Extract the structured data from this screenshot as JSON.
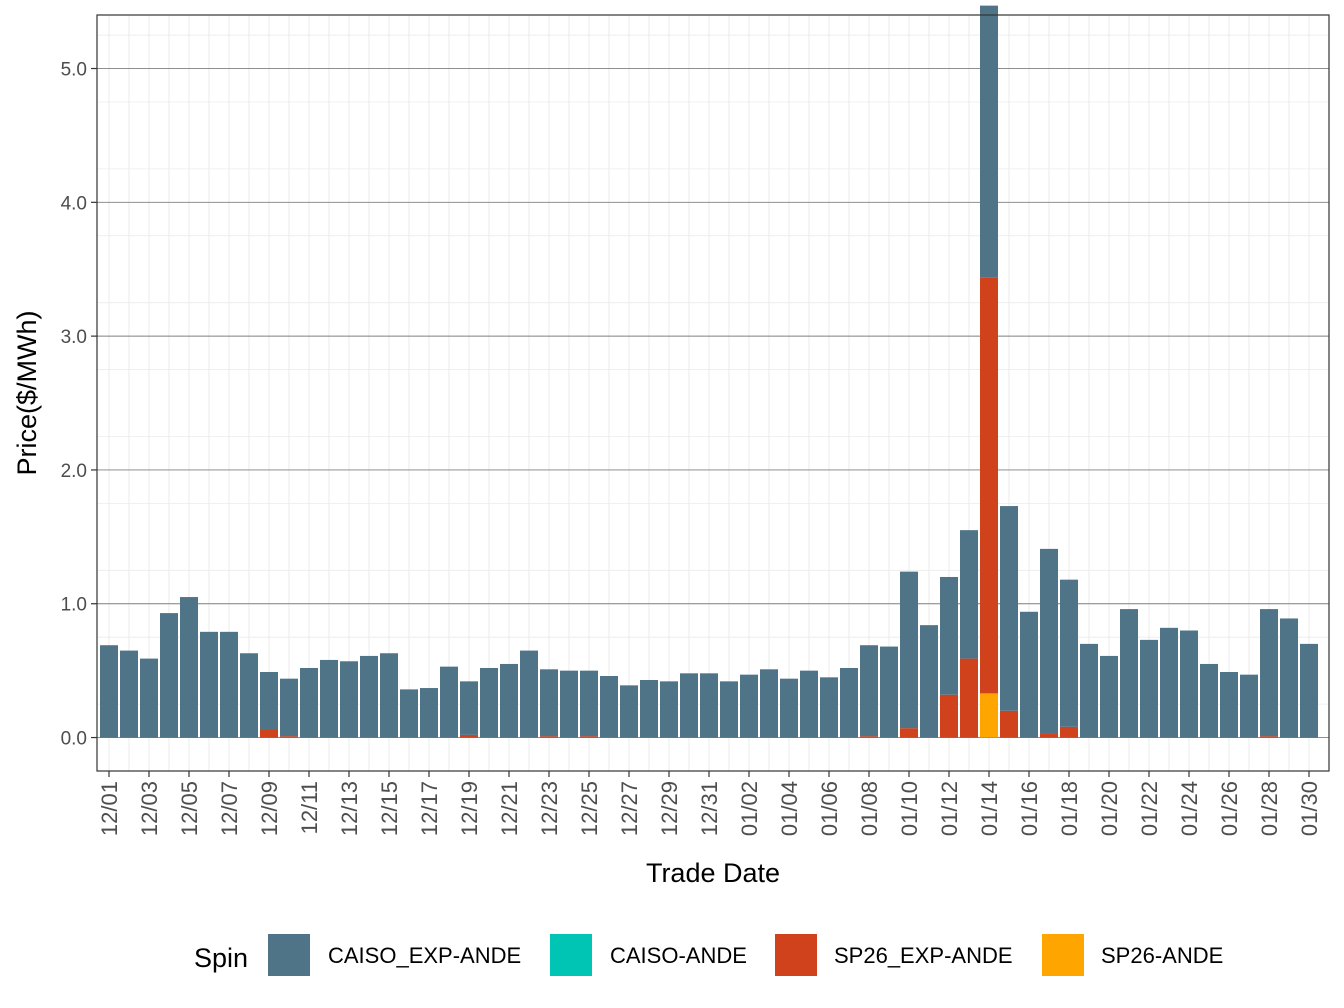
{
  "chart_data": {
    "type": "bar",
    "stacked": true,
    "xlabel": "Trade Date",
    "ylabel": "Price($/MWh)",
    "ylim": [
      -0.25,
      5.4
    ],
    "y_ticks": [
      "0.0",
      "1.0",
      "2.0",
      "3.0",
      "4.0",
      "5.0"
    ],
    "y_tick_values": [
      0,
      1,
      2,
      3,
      4,
      5
    ],
    "grid": true,
    "legend_title": "Spin",
    "legend_position": "bottom",
    "categories": [
      "12/01",
      "12/02",
      "12/03",
      "12/04",
      "12/05",
      "12/06",
      "12/07",
      "12/08",
      "12/09",
      "12/10",
      "12/11",
      "12/12",
      "12/13",
      "12/14",
      "12/15",
      "12/16",
      "12/17",
      "12/18",
      "12/19",
      "12/20",
      "12/21",
      "12/22",
      "12/23",
      "12/24",
      "12/25",
      "12/26",
      "12/27",
      "12/28",
      "12/29",
      "12/30",
      "12/31",
      "01/01",
      "01/02",
      "01/03",
      "01/04",
      "01/05",
      "01/06",
      "01/07",
      "01/08",
      "01/09",
      "01/10",
      "01/11",
      "01/12",
      "01/13",
      "01/14",
      "01/15",
      "01/16",
      "01/17",
      "01/18",
      "01/19",
      "01/20",
      "01/21",
      "01/22",
      "01/23",
      "01/24",
      "01/25",
      "01/26",
      "01/27",
      "01/28",
      "01/29",
      "01/30",
      "01/31"
    ],
    "tick_labels": [
      "12/01",
      "12/03",
      "12/05",
      "12/07",
      "12/09",
      "12/11",
      "12/13",
      "12/15",
      "12/17",
      "12/19",
      "12/21",
      "12/23",
      "12/25",
      "12/27",
      "12/29",
      "12/31",
      "01/02",
      "01/04",
      "01/06",
      "01/08",
      "01/10",
      "01/12",
      "01/14",
      "01/16",
      "01/18",
      "01/20",
      "01/22",
      "01/24",
      "01/26",
      "01/28",
      "01/30"
    ],
    "tick_indices": [
      0,
      2,
      4,
      6,
      8,
      10,
      12,
      14,
      16,
      18,
      20,
      22,
      24,
      26,
      28,
      30,
      32,
      34,
      36,
      38,
      40,
      42,
      44,
      46,
      48,
      50,
      52,
      54,
      56,
      58,
      60
    ],
    "series": [
      {
        "name": "SP26-ANDE",
        "color": "#FFA500",
        "values": [
          0,
          0,
          0,
          0,
          0,
          0,
          0,
          0,
          0,
          0,
          0,
          0,
          0,
          0,
          0,
          0,
          0,
          0,
          0,
          0,
          0,
          0,
          0,
          0,
          0,
          0,
          0,
          0,
          0,
          0,
          0,
          0,
          0,
          0,
          0,
          0,
          0,
          0,
          0,
          0,
          0,
          0,
          0,
          0,
          0.33,
          0,
          0,
          0,
          0,
          0,
          0,
          0,
          0,
          0,
          0,
          0,
          0,
          0,
          0,
          0,
          0,
          0
        ]
      },
      {
        "name": "SP26_EXP-ANDE",
        "color": "#D0421B",
        "values": [
          0,
          0,
          0,
          0,
          0,
          0,
          0,
          0,
          0.06,
          0.01,
          0,
          0,
          0,
          0,
          0,
          0,
          0,
          0,
          0.02,
          0,
          0,
          0,
          0.01,
          0,
          0.01,
          0,
          0,
          0,
          0,
          0,
          0,
          0,
          0,
          0,
          0,
          0,
          0,
          0,
          0.01,
          0,
          0.07,
          0,
          0.32,
          0.59,
          3.11,
          0.2,
          0,
          0.03,
          0.08,
          0,
          0,
          0,
          0,
          0,
          0,
          0,
          0,
          0,
          0.01,
          0,
          0,
          0
        ]
      },
      {
        "name": "CAISO-ANDE",
        "color": "#00C5B5",
        "values": [
          0,
          0,
          0,
          0,
          0,
          0,
          0,
          0,
          0,
          0,
          0,
          0,
          0,
          0,
          0,
          0,
          0,
          0,
          0,
          0,
          0,
          0,
          0,
          0,
          0,
          0,
          0,
          0,
          0,
          0,
          0,
          0,
          0,
          0,
          0,
          0,
          0,
          0,
          0,
          0,
          0,
          0,
          0,
          0,
          0,
          0,
          0,
          0,
          0,
          0,
          0,
          0,
          0,
          0,
          0,
          0,
          0,
          0,
          0,
          0,
          0,
          0
        ]
      },
      {
        "name": "CAISO_EXP-ANDE",
        "color": "#4F7387",
        "values": [
          0.69,
          0.65,
          0.59,
          0.93,
          1.05,
          0.79,
          0.79,
          0.63,
          0.43,
          0.43,
          0.52,
          0.58,
          0.57,
          0.61,
          0.63,
          0.36,
          0.37,
          0.53,
          0.4,
          0.52,
          0.55,
          0.65,
          0.5,
          0.5,
          0.49,
          0.46,
          0.39,
          0.43,
          0.42,
          0.48,
          0.48,
          0.42,
          0.47,
          0.51,
          0.44,
          0.5,
          0.45,
          0.52,
          0.68,
          0.68,
          1.17,
          0.84,
          0.88,
          0.96,
          2.03,
          1.53,
          0.94,
          1.38,
          1.1,
          0.7,
          0.61,
          0.96,
          0.73,
          0.82,
          0.8,
          0.55,
          0.49,
          0.47,
          0.95,
          0.89,
          0.7,
          0
        ]
      }
    ],
    "legend_order": [
      "CAISO_EXP-ANDE",
      "CAISO-ANDE",
      "SP26_EXP-ANDE",
      "SP26-ANDE"
    ]
  }
}
